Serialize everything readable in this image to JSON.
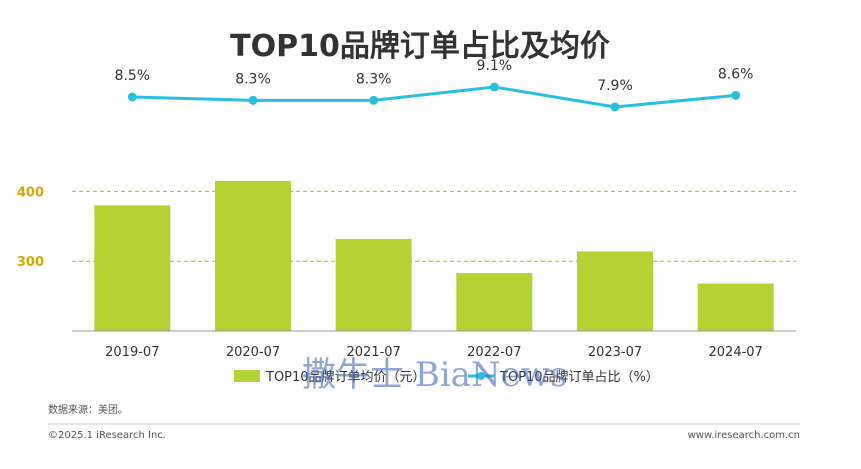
{
  "chart_data": {
    "type": "bar+line",
    "title": "TOP10品牌订单占比及均价",
    "categories": [
      "2019-07",
      "2020-07",
      "2021-07",
      "2022-07",
      "2023-07",
      "2024-07"
    ],
    "series": [
      {
        "name": "TOP10品牌订单均价（元）",
        "type": "bar",
        "values": [
          380,
          415,
          332,
          283,
          314,
          268
        ],
        "color": "#b3d335"
      },
      {
        "name": "TOP10品牌订单占比（%）",
        "type": "line",
        "values": [
          8.5,
          8.3,
          8.3,
          9.1,
          7.9,
          8.6
        ],
        "labels": [
          "8.5%",
          "8.3%",
          "8.3%",
          "9.1%",
          "7.9%",
          "8.6%"
        ],
        "color": "#29c0dd"
      }
    ],
    "y_ticks": [
      "300",
      "400"
    ],
    "y_tick_values": [
      300,
      400
    ],
    "ylim": [
      200,
      445
    ],
    "y2lim": [
      4,
      10
    ],
    "grid_color": "#d4a900",
    "legend_position": "bottom"
  },
  "source": "数据来源：美团。",
  "copyright": "©2025.1 iResearch Inc.",
  "website": "www.iresearch.com.cn",
  "watermark": "撒牛士 BiaNews"
}
